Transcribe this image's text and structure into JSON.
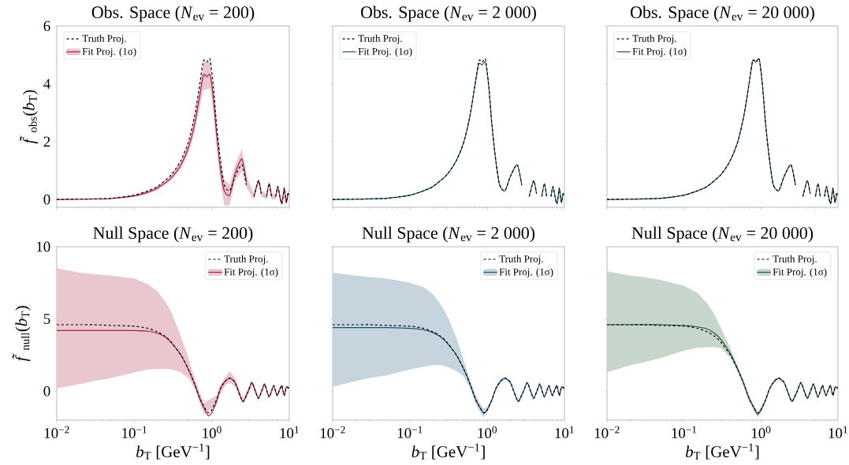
{
  "chart_data": [
    {
      "type": "line",
      "title": "Obs. Space (*N*$_{ev}$ = 200)",
      "ylabel": "*f̃*$_{obs}$(*b*$_{T}$)",
      "log": "x",
      "marker": "none",
      "legend": "top left",
      "tick_labels": "y",
      "xlim": [
        0.01,
        10
      ],
      "ylim": [
        -0.27,
        6
      ],
      "xticks": [
        {
          "value": 0.01,
          "label": null
        },
        {
          "value": 0.1,
          "label": null
        },
        {
          "value": 1,
          "label": null
        },
        {
          "value": 10,
          "label": null
        }
      ],
      "yticks": [
        0,
        2,
        4,
        6
      ],
      "x": [
        0.01,
        0.02,
        0.05,
        0.1,
        0.15,
        0.2,
        0.3,
        0.4,
        0.5,
        0.6,
        0.7,
        0.78,
        0.86,
        0.95,
        1.05,
        1.15,
        1.3,
        1.45,
        1.7,
        2.0,
        2.45,
        2.8,
        3.1,
        3.5,
        4.0,
        4.35,
        4.7,
        5.1,
        5.5,
        5.9,
        6.3,
        6.7,
        7.1,
        7.55,
        8.0,
        8.3,
        8.6,
        8.9,
        9.2,
        9.6,
        10
      ],
      "series": [
        {
          "name": "Truth Proj.",
          "color": "#000000",
          "line_style": "dashed",
          "values": [
            0,
            0.01,
            0.04,
            0.15,
            0.3,
            0.45,
            0.85,
            1.35,
            2.0,
            2.9,
            4.0,
            4.8,
            4.75,
            4.85,
            3.9,
            2.6,
            1.3,
            0.5,
            0.3,
            0.8,
            1.2,
            0.5,
            null,
            0.1,
            0.65,
            0.2,
            null,
            0.1,
            0.55,
            0.1,
            null,
            0.1,
            0.45,
            0.1,
            -0.15,
            0.1,
            0.4,
            0.1,
            -0.1,
            0.2,
            0.15
          ]
        },
        {
          "name": "Fit Proj. (1σ)",
          "color": "#a8203d",
          "line_style": "solid",
          "values": [
            0,
            0.01,
            0.03,
            0.12,
            0.25,
            0.4,
            0.75,
            1.2,
            1.8,
            2.6,
            3.6,
            4.3,
            4.25,
            4.3,
            3.5,
            2.3,
            1.0,
            0.3,
            0.15,
            0.9,
            1.4,
            0.6,
            null,
            0.1,
            0.65,
            0.2,
            null,
            0.1,
            0.55,
            0.1,
            null,
            0.1,
            0.45,
            0.1,
            -0.15,
            0.1,
            0.4,
            0.1,
            -0.1,
            0.2,
            0.15
          ],
          "lower": [
            0,
            0,
            0.02,
            0.09,
            0.2,
            0.33,
            0.65,
            1.05,
            1.6,
            2.3,
            3.2,
            3.8,
            3.8,
            3.85,
            3.0,
            1.9,
            0.6,
            -0.2,
            -0.2,
            0.6,
            1.0,
            0.4,
            null,
            0.0,
            0.55,
            0.1,
            null,
            0.0,
            0.45,
            0.0,
            null,
            0.0,
            0.35,
            0.0,
            -0.25,
            0.0,
            0.3,
            0.0,
            -0.2,
            0.1,
            0.05
          ],
          "upper": [
            0,
            0.02,
            0.05,
            0.15,
            0.3,
            0.47,
            0.85,
            1.35,
            2.0,
            2.9,
            4.0,
            4.8,
            4.75,
            4.8,
            4.0,
            2.8,
            1.4,
            0.7,
            0.5,
            1.2,
            1.75,
            0.8,
            null,
            0.2,
            0.75,
            0.3,
            null,
            0.2,
            0.65,
            0.2,
            null,
            0.2,
            0.55,
            0.2,
            -0.05,
            0.2,
            0.5,
            0.2,
            0.0,
            0.3,
            0.25
          ]
        }
      ]
    },
    {
      "type": "line",
      "title": "Obs. Space (*N*$_{ev}$ = 2 000)",
      "log": "x",
      "marker": "none",
      "legend": "top left",
      "tick_labels": false,
      "xlim": [
        0.01,
        10
      ],
      "ylim": [
        -0.27,
        6
      ],
      "xticks": [
        {
          "value": 0.01,
          "label": null
        },
        {
          "value": 0.1,
          "label": null
        },
        {
          "value": 1,
          "label": null
        },
        {
          "value": 10,
          "label": null
        }
      ],
      "yticks": [
        {
          "value": 0,
          "label": null
        },
        {
          "value": 2,
          "label": null
        },
        {
          "value": 4,
          "label": null
        },
        {
          "value": 6,
          "label": null
        }
      ],
      "x": [
        0.01,
        0.02,
        0.05,
        0.1,
        0.15,
        0.2,
        0.3,
        0.4,
        0.5,
        0.6,
        0.7,
        0.78,
        0.86,
        0.95,
        1.05,
        1.15,
        1.3,
        1.45,
        1.7,
        2.0,
        2.45,
        2.8,
        3.1,
        3.5,
        4.0,
        4.35,
        4.7,
        5.1,
        5.5,
        5.9,
        6.3,
        6.7,
        7.1,
        7.55,
        8.0,
        8.3,
        8.6,
        8.9,
        9.2,
        9.6,
        10
      ],
      "series": [
        {
          "name": "Truth Proj.",
          "color": "#000000",
          "line_style": "dashed",
          "values": [
            0,
            0.01,
            0.04,
            0.15,
            0.3,
            0.45,
            0.85,
            1.35,
            2.0,
            2.9,
            4.0,
            4.8,
            4.75,
            4.85,
            3.9,
            2.6,
            1.3,
            0.5,
            0.3,
            0.8,
            1.2,
            0.5,
            null,
            0.1,
            0.65,
            0.2,
            null,
            0.1,
            0.55,
            0.1,
            null,
            0.1,
            0.45,
            0.1,
            -0.15,
            0.1,
            0.4,
            0.1,
            -0.1,
            0.2,
            0.15
          ]
        },
        {
          "name": "Fit Proj. (1σ)",
          "color": "#1b5676",
          "line_style": "solid",
          "values": [
            0,
            0.01,
            0.04,
            0.15,
            0.3,
            0.45,
            0.85,
            1.35,
            2.0,
            2.9,
            4.0,
            4.7,
            4.65,
            4.75,
            3.9,
            2.6,
            1.3,
            0.5,
            0.3,
            0.8,
            1.2,
            0.5,
            null,
            0.1,
            0.65,
            0.2,
            null,
            0.1,
            0.55,
            0.1,
            null,
            0.1,
            0.45,
            0.1,
            -0.15,
            0.1,
            0.4,
            0.1,
            -0.1,
            0.2,
            0.15
          ]
        }
      ]
    },
    {
      "type": "line",
      "title": "Obs. Space (*N*$_{ev}$ = 20 000)",
      "log": "x",
      "marker": "none",
      "legend": "top left",
      "tick_labels": false,
      "xlim": [
        0.01,
        10
      ],
      "ylim": [
        -0.27,
        6
      ],
      "xticks": [
        {
          "value": 0.01,
          "label": null
        },
        {
          "value": 0.1,
          "label": null
        },
        {
          "value": 1,
          "label": null
        },
        {
          "value": 10,
          "label": null
        }
      ],
      "yticks": [
        {
          "value": 0,
          "label": null
        },
        {
          "value": 2,
          "label": null
        },
        {
          "value": 4,
          "label": null
        },
        {
          "value": 6,
          "label": null
        }
      ],
      "x": [
        0.01,
        0.02,
        0.05,
        0.1,
        0.15,
        0.2,
        0.3,
        0.4,
        0.5,
        0.6,
        0.7,
        0.78,
        0.86,
        0.95,
        1.05,
        1.15,
        1.3,
        1.45,
        1.7,
        2.0,
        2.45,
        2.8,
        3.1,
        3.5,
        4.0,
        4.35,
        4.7,
        5.1,
        5.5,
        5.9,
        6.3,
        6.7,
        7.1,
        7.55,
        8.0,
        8.3,
        8.6,
        8.9,
        9.2,
        9.6,
        10
      ],
      "series": [
        {
          "name": "Truth Proj.",
          "color": "#000000",
          "line_style": "dashed",
          "values": [
            0,
            0.01,
            0.04,
            0.15,
            0.3,
            0.45,
            0.85,
            1.35,
            2.0,
            2.9,
            4.0,
            4.8,
            4.75,
            4.85,
            3.9,
            2.6,
            1.3,
            0.5,
            0.3,
            0.8,
            1.2,
            0.5,
            null,
            0.1,
            0.65,
            0.2,
            null,
            0.1,
            0.55,
            0.1,
            null,
            0.1,
            0.45,
            0.1,
            -0.15,
            0.1,
            0.4,
            0.1,
            -0.1,
            0.2,
            0.15
          ]
        },
        {
          "name": "Fit Proj. (1σ)",
          "color": "#1d5a2c",
          "line_style": "solid",
          "values": [
            0,
            0.01,
            0.04,
            0.15,
            0.3,
            0.45,
            0.85,
            1.35,
            2.0,
            2.9,
            4.0,
            4.8,
            4.75,
            4.85,
            3.9,
            2.6,
            1.3,
            0.5,
            0.3,
            0.8,
            1.2,
            0.5,
            null,
            0.1,
            0.65,
            0.2,
            null,
            0.1,
            0.55,
            0.1,
            null,
            0.1,
            0.45,
            0.1,
            -0.15,
            0.1,
            0.4,
            0.1,
            -0.1,
            0.2,
            0.15
          ]
        }
      ]
    },
    {
      "type": "line",
      "title": "Null Space (*N*$_{ev}$ = 200)",
      "xlabel": "*b*$_{T}$ [GeV$^{−1}$]",
      "ylabel": "*f̃*$_{null}$(*b*$_{T}$)",
      "log": "x",
      "marker": "none",
      "legend": "top right",
      "xlim": [
        0.01,
        10
      ],
      "ylim": [
        -2,
        10
      ],
      "xticks": [
        {
          "value": 0.01,
          "label": "10$^{−2}$"
        },
        {
          "value": 0.1,
          "label": "10$^{−1}$"
        },
        {
          "value": 1,
          "label": "10$^{0}$"
        },
        {
          "value": 10,
          "label": "10$^{1}$"
        }
      ],
      "yticks": [
        0,
        5,
        10
      ],
      "x": [
        0.01,
        0.02,
        0.03,
        0.05,
        0.1,
        0.15,
        0.2,
        0.25,
        0.3,
        0.4,
        0.5,
        0.6,
        0.7,
        0.8,
        0.9,
        1.0,
        1.15,
        1.3,
        1.5,
        1.7,
        2.0,
        2.5,
        2.9,
        3.3,
        3.65,
        4.0,
        4.4,
        4.8,
        5.15,
        5.5,
        5.9,
        6.3,
        6.65,
        7.0,
        7.5,
        8.0,
        8.3,
        8.6,
        8.9,
        9.2,
        10
      ],
      "series": [
        {
          "name": "Truth Proj.",
          "color": "#000000",
          "line_style": "dashed",
          "values": [
            4.6,
            4.6,
            4.6,
            4.55,
            4.5,
            4.35,
            4.1,
            3.8,
            3.4,
            2.5,
            1.5,
            0.5,
            -0.5,
            -1.1,
            -1.5,
            -1.3,
            -0.6,
            0.2,
            0.7,
            0.9,
            0.6,
            -0.7,
            -0.1,
            0.6,
            0.0,
            -0.5,
            0.0,
            0.5,
            0.0,
            -0.4,
            0.0,
            0.4,
            0.0,
            -0.3,
            0.1,
            0.4,
            0.0,
            -0.3,
            0.0,
            0.3,
            0.2
          ]
        },
        {
          "name": "Fit Proj. (1σ)",
          "color": "#a8203d",
          "line_style": "solid",
          "values": [
            4.2,
            4.2,
            4.2,
            4.2,
            4.2,
            4.15,
            4.0,
            3.75,
            3.35,
            2.5,
            1.5,
            0.5,
            -0.5,
            -1.2,
            -1.7,
            -1.5,
            -0.7,
            0.2,
            0.7,
            0.9,
            0.6,
            -0.7,
            -0.1,
            0.6,
            0.0,
            -0.5,
            0.0,
            0.5,
            0.0,
            -0.4,
            0.0,
            0.4,
            0.0,
            -0.3,
            0.1,
            0.4,
            0.0,
            -0.3,
            0.0,
            0.3,
            0.2
          ],
          "lower": [
            0.2,
            0.5,
            0.7,
            0.9,
            1.3,
            1.5,
            1.55,
            1.55,
            1.5,
            1.3,
            0.9,
            0.2,
            -0.8,
            -1.6,
            null,
            null,
            -1.0,
            -0.1,
            0.4,
            0.6,
            0.3,
            -0.9,
            -0.3,
            0.4,
            -0.15,
            -0.6,
            -0.1,
            0.35,
            -0.1,
            -0.5,
            -0.1,
            0.3,
            -0.1,
            -0.4,
            0.0,
            0.3,
            -0.1,
            -0.4,
            -0.1,
            0.2,
            0.1
          ],
          "upper": [
            8.5,
            8.2,
            8.1,
            8.0,
            7.8,
            7.4,
            6.9,
            6.2,
            5.5,
            3.8,
            2.3,
            0.9,
            -0.1,
            -0.8,
            null,
            null,
            -0.3,
            0.5,
            1.0,
            1.4,
            0.9,
            -0.5,
            0.1,
            0.8,
            0.15,
            -0.4,
            0.1,
            0.6,
            0.1,
            -0.3,
            0.1,
            0.5,
            0.1,
            -0.2,
            0.2,
            0.5,
            0.1,
            -0.2,
            0.1,
            0.4,
            0.3
          ]
        }
      ]
    },
    {
      "type": "line",
      "title": "Null Space (*N*$_{ev}$ = 2 000)",
      "xlabel": "*b*$_{T}$ [GeV$^{−1}$]",
      "log": "x",
      "marker": "none",
      "legend": "top right",
      "tick_labels": "x",
      "xlim": [
        0.01,
        10
      ],
      "ylim": [
        -2,
        10
      ],
      "xticks": [
        {
          "value": 0.01,
          "label": "10$^{−2}$"
        },
        {
          "value": 0.1,
          "label": "10$^{−1}$"
        },
        {
          "value": 1,
          "label": "10$^{0}$"
        },
        {
          "value": 10,
          "label": "10$^{1}$"
        }
      ],
      "yticks": [
        {
          "value": 0,
          "label": null
        },
        {
          "value": 5,
          "label": null
        },
        {
          "value": 10,
          "label": null
        }
      ],
      "x": [
        0.01,
        0.02,
        0.03,
        0.05,
        0.1,
        0.15,
        0.2,
        0.25,
        0.3,
        0.4,
        0.5,
        0.6,
        0.7,
        0.8,
        0.9,
        1.0,
        1.15,
        1.3,
        1.5,
        1.7,
        2.0,
        2.5,
        2.9,
        3.3,
        3.65,
        4.0,
        4.4,
        4.8,
        5.15,
        5.5,
        5.9,
        6.3,
        6.65,
        7.0,
        7.5,
        8.0,
        8.3,
        8.6,
        8.9,
        9.2,
        10
      ],
      "series": [
        {
          "name": "Truth Proj.",
          "color": "#000000",
          "line_style": "dashed",
          "values": [
            4.6,
            4.6,
            4.6,
            4.55,
            4.5,
            4.35,
            4.1,
            3.8,
            3.4,
            2.5,
            1.5,
            0.5,
            -0.5,
            -1.1,
            -1.5,
            -1.3,
            -0.6,
            0.2,
            0.7,
            0.9,
            0.6,
            -0.7,
            -0.1,
            0.6,
            0.0,
            -0.5,
            0.0,
            0.5,
            0.0,
            -0.4,
            0.0,
            0.4,
            0.0,
            -0.3,
            0.1,
            0.4,
            0.0,
            -0.3,
            0.0,
            0.3,
            0.2
          ]
        },
        {
          "name": "Fit Proj. (1σ)",
          "color": "#1b5676",
          "line_style": "solid",
          "values": [
            4.4,
            4.4,
            4.4,
            4.4,
            4.35,
            4.25,
            4.05,
            3.75,
            3.35,
            2.5,
            1.5,
            0.5,
            -0.5,
            -1.1,
            -1.5,
            -1.3,
            -0.6,
            0.2,
            0.7,
            0.9,
            0.6,
            -0.7,
            -0.1,
            0.6,
            0.0,
            -0.5,
            0.0,
            0.5,
            0.0,
            -0.4,
            0.0,
            0.4,
            0.0,
            -0.3,
            0.1,
            0.4,
            0.0,
            -0.3,
            0.0,
            0.3,
            0.2
          ],
          "lower": [
            0.3,
            0.7,
            0.9,
            1.1,
            1.5,
            1.7,
            1.8,
            1.8,
            1.7,
            1.4,
            1.0,
            0.2,
            -0.8,
            -1.4,
            -1.8,
            -1.5,
            -0.7,
            0.1,
            0.6,
            0.8,
            0.5,
            -0.8,
            -0.2,
            0.5,
            -0.1,
            -0.6,
            -0.1,
            0.4,
            -0.1,
            -0.5,
            -0.1,
            0.3,
            -0.1,
            -0.4,
            0.0,
            0.3,
            -0.1,
            -0.4,
            -0.1,
            0.2,
            0.1
          ],
          "upper": [
            8.2,
            8.0,
            7.9,
            7.8,
            7.5,
            7.2,
            6.7,
            6.0,
            5.3,
            3.7,
            2.1,
            0.8,
            -0.2,
            -0.8,
            -1.2,
            -1.1,
            -0.5,
            0.3,
            0.8,
            1.0,
            0.7,
            -0.6,
            0.0,
            0.7,
            0.1,
            -0.4,
            0.1,
            0.6,
            0.1,
            -0.3,
            0.1,
            0.5,
            0.1,
            -0.2,
            0.2,
            0.5,
            0.1,
            -0.2,
            0.1,
            0.4,
            0.3
          ]
        }
      ]
    },
    {
      "type": "line",
      "title": "Null Space (*N*$_{ev}$ = 20 000)",
      "xlabel": "*b*$_{T}$ [GeV$^{−1}$]",
      "log": "x",
      "marker": "none",
      "legend": "top right",
      "tick_labels": "x",
      "xlim": [
        0.01,
        10
      ],
      "ylim": [
        -2,
        10
      ],
      "xticks": [
        {
          "value": 0.01,
          "label": "10$^{−2}$"
        },
        {
          "value": 0.1,
          "label": "10$^{−1}$"
        },
        {
          "value": 1,
          "label": "10$^{0}$"
        },
        {
          "value": 10,
          "label": "10$^{1}$"
        }
      ],
      "yticks": [
        {
          "value": 0,
          "label": null
        },
        {
          "value": 5,
          "label": null
        },
        {
          "value": 10,
          "label": null
        }
      ],
      "x": [
        0.01,
        0.02,
        0.03,
        0.05,
        0.1,
        0.15,
        0.2,
        0.25,
        0.3,
        0.4,
        0.5,
        0.6,
        0.7,
        0.8,
        0.9,
        1.0,
        1.15,
        1.3,
        1.5,
        1.7,
        2.0,
        2.5,
        2.9,
        3.3,
        3.65,
        4.0,
        4.4,
        4.8,
        5.15,
        5.5,
        5.9,
        6.3,
        6.65,
        7.0,
        7.5,
        8.0,
        8.3,
        8.6,
        8.9,
        9.2,
        10
      ],
      "series": [
        {
          "name": "Truth Proj.",
          "color": "#000000",
          "line_style": "dashed",
          "values": [
            4.6,
            4.6,
            4.6,
            4.55,
            4.5,
            4.35,
            4.1,
            3.8,
            3.4,
            2.5,
            1.5,
            0.5,
            -0.5,
            -1.1,
            -1.5,
            -1.3,
            -0.6,
            0.2,
            0.7,
            0.9,
            0.6,
            -0.7,
            -0.1,
            0.6,
            0.0,
            -0.5,
            0.0,
            0.5,
            0.0,
            -0.4,
            0.0,
            0.4,
            0.0,
            -0.3,
            0.1,
            0.4,
            0.0,
            -0.3,
            0.0,
            0.3,
            0.2
          ]
        },
        {
          "name": "Fit Proj. (1σ)",
          "color": "#1d5a2c",
          "line_style": "solid",
          "values": [
            4.6,
            4.6,
            4.6,
            4.6,
            4.55,
            4.45,
            4.3,
            4.0,
            3.6,
            2.6,
            1.5,
            0.5,
            -0.5,
            -1.1,
            -1.6,
            -1.3,
            -0.6,
            0.2,
            0.7,
            0.9,
            0.6,
            -0.7,
            -0.1,
            0.6,
            0.0,
            -0.5,
            0.0,
            0.5,
            0.0,
            -0.4,
            0.0,
            0.4,
            0.0,
            -0.3,
            0.1,
            0.4,
            0.0,
            -0.3,
            0.0,
            0.3,
            0.2
          ],
          "lower": [
            1.3,
            1.8,
            2.0,
            2.3,
            2.8,
            3.0,
            3.05,
            3.05,
            3.0,
            2.3,
            1.3,
            0.3,
            -0.7,
            -1.3,
            -1.8,
            -1.5,
            -0.7,
            0.1,
            0.6,
            0.8,
            0.5,
            -0.8,
            -0.2,
            0.5,
            -0.1,
            -0.6,
            -0.1,
            0.4,
            -0.1,
            -0.5,
            -0.1,
            0.3,
            -0.1,
            -0.4,
            0.0,
            0.3,
            -0.1,
            -0.4,
            -0.1,
            0.2,
            0.1
          ],
          "upper": [
            8.3,
            8.0,
            7.9,
            7.7,
            7.3,
            6.8,
            6.1,
            5.3,
            4.4,
            3.0,
            1.7,
            0.7,
            -0.3,
            -0.9,
            -1.4,
            -1.1,
            -0.5,
            0.3,
            0.8,
            1.0,
            0.7,
            -0.6,
            0.0,
            0.7,
            0.1,
            -0.4,
            0.1,
            0.6,
            0.1,
            -0.3,
            0.1,
            0.5,
            0.1,
            -0.2,
            0.2,
            0.5,
            0.1,
            -0.2,
            0.1,
            0.4,
            0.3
          ]
        }
      ]
    }
  ]
}
